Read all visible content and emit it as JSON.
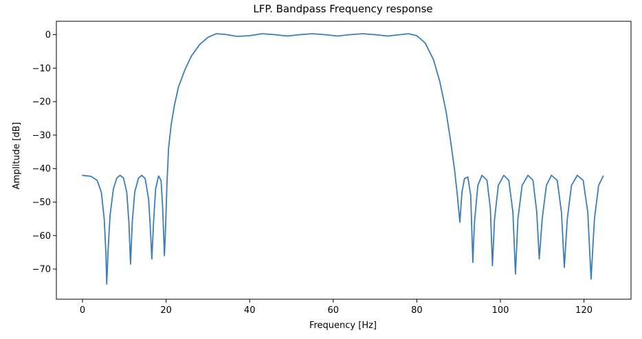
{
  "chart_data": {
    "type": "line",
    "title": "LFP. Bandpass Frequency response",
    "xlabel": "Frequency [Hz]",
    "ylabel": "Amplitude [dB]",
    "xlim": [
      -6.25,
      131.25
    ],
    "ylim": [
      -79,
      4
    ],
    "xticks": [
      0,
      20,
      40,
      60,
      80,
      100,
      120
    ],
    "yticks": [
      0,
      -10,
      -20,
      -30,
      -40,
      -50,
      -60,
      -70
    ],
    "xtick_labels": [
      "0",
      "20",
      "40",
      "60",
      "80",
      "100",
      "120"
    ],
    "ytick_labels": [
      "0",
      "−10",
      "−20",
      "−30",
      "−40",
      "−50",
      "−60",
      "−70"
    ],
    "grid": false,
    "series": [
      {
        "color": "#3a7dba",
        "points": [
          [
            0,
            -42.0
          ],
          [
            2,
            -42.3
          ],
          [
            3.5,
            -43.5
          ],
          [
            4.5,
            -47
          ],
          [
            5.2,
            -55
          ],
          [
            5.6,
            -65
          ],
          [
            5.8,
            -74.5
          ],
          [
            6.1,
            -65
          ],
          [
            6.6,
            -54
          ],
          [
            7.4,
            -46
          ],
          [
            8.2,
            -42.8
          ],
          [
            9,
            -42
          ],
          [
            9.8,
            -42.8
          ],
          [
            10.6,
            -47
          ],
          [
            11.1,
            -56
          ],
          [
            11.5,
            -68.5
          ],
          [
            11.9,
            -56
          ],
          [
            12.5,
            -47
          ],
          [
            13.4,
            -42.8
          ],
          [
            14.2,
            -42
          ],
          [
            15.0,
            -43
          ],
          [
            15.8,
            -49
          ],
          [
            16.2,
            -57
          ],
          [
            16.6,
            -67
          ],
          [
            17.0,
            -56
          ],
          [
            17.5,
            -46
          ],
          [
            18.2,
            -42.2
          ],
          [
            18.8,
            -43.5
          ],
          [
            19.2,
            -52
          ],
          [
            19.6,
            -66
          ],
          [
            19.9,
            -57
          ],
          [
            20.2,
            -45
          ],
          [
            20.6,
            -34
          ],
          [
            21.2,
            -27
          ],
          [
            22,
            -21
          ],
          [
            23,
            -15.5
          ],
          [
            24.5,
            -10.5
          ],
          [
            26,
            -6.5
          ],
          [
            28,
            -3
          ],
          [
            30,
            -0.8
          ],
          [
            32,
            0.3
          ],
          [
            34,
            0.1
          ],
          [
            37,
            -0.5
          ],
          [
            40,
            -0.3
          ],
          [
            43,
            0.3
          ],
          [
            46,
            0.0
          ],
          [
            49,
            -0.4
          ],
          [
            52,
            0.0
          ],
          [
            55,
            0.3
          ],
          [
            58,
            0.0
          ],
          [
            61,
            -0.4
          ],
          [
            64,
            0.0
          ],
          [
            67,
            0.3
          ],
          [
            70,
            0.0
          ],
          [
            73,
            -0.4
          ],
          [
            76,
            0.0
          ],
          [
            78,
            0.3
          ],
          [
            80,
            -0.3
          ],
          [
            82,
            -2.5
          ],
          [
            84,
            -7.5
          ],
          [
            85.5,
            -14
          ],
          [
            87,
            -23
          ],
          [
            88,
            -31
          ],
          [
            89,
            -40
          ],
          [
            89.7,
            -48
          ],
          [
            90.3,
            -56
          ],
          [
            90.8,
            -47
          ],
          [
            91.4,
            -43
          ],
          [
            92.2,
            -42.5
          ],
          [
            92.9,
            -48
          ],
          [
            93.4,
            -68
          ],
          [
            93.8,
            -56
          ],
          [
            94.6,
            -45
          ],
          [
            95.6,
            -42
          ],
          [
            96.8,
            -43.5
          ],
          [
            97.6,
            -52
          ],
          [
            98.1,
            -69
          ],
          [
            98.6,
            -55
          ],
          [
            99.5,
            -45
          ],
          [
            100.8,
            -42
          ],
          [
            102,
            -43.5
          ],
          [
            103,
            -53
          ],
          [
            103.6,
            -71.5
          ],
          [
            104.2,
            -55
          ],
          [
            105.2,
            -45
          ],
          [
            106.6,
            -42
          ],
          [
            107.8,
            -43.5
          ],
          [
            108.7,
            -53
          ],
          [
            109.3,
            -67
          ],
          [
            110,
            -55
          ],
          [
            111,
            -45
          ],
          [
            112.2,
            -42
          ],
          [
            113.6,
            -43.5
          ],
          [
            114.6,
            -53
          ],
          [
            115.3,
            -69.5
          ],
          [
            116,
            -55
          ],
          [
            117,
            -45
          ],
          [
            118.4,
            -42
          ],
          [
            119.8,
            -43.5
          ],
          [
            120.9,
            -53
          ],
          [
            121.7,
            -73
          ],
          [
            122.5,
            -55
          ],
          [
            123.5,
            -45
          ],
          [
            124.6,
            -42.2
          ]
        ]
      }
    ]
  }
}
